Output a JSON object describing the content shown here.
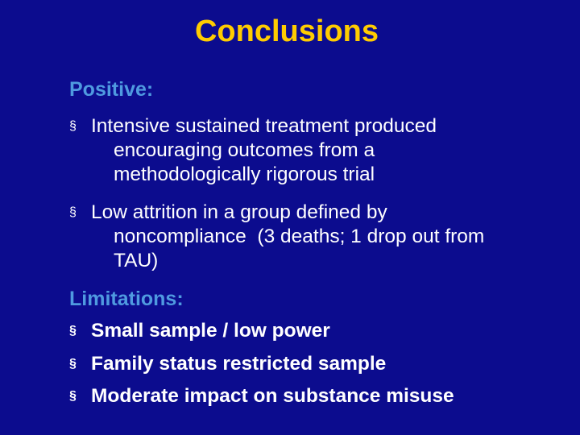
{
  "slide": {
    "title": "Conclusions",
    "positive": {
      "heading": "Positive:",
      "bullets": [
        {
          "lines": [
            "Intensive sustained treatment produced",
            "encouraging outcomes from a",
            "methodologically rigorous trial"
          ]
        },
        {
          "lines": [
            "Low attrition in a group defined by",
            "noncompliance  (3 deaths; 1 drop out from",
            "TAU)"
          ]
        }
      ]
    },
    "limitations": {
      "heading": "Limitations:",
      "bullets": [
        "Small sample / low power",
        "Family status restricted sample",
        "Moderate impact on substance misuse"
      ]
    },
    "bullet_marker": "§",
    "colors": {
      "background": "#0c0c8e",
      "title": "#ffcc00",
      "heading": "#4f9ae0",
      "body_text": "#ffffff"
    }
  }
}
